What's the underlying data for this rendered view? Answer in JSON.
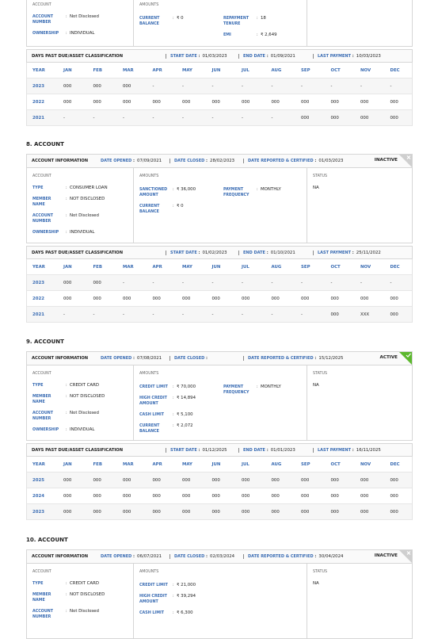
{
  "sections": [
    {
      "account": {
        "heading": "ACCOUNT",
        "fields": [
          {
            "label": "ACCOUNT NUMBER",
            "value": "Not Disclosed"
          },
          {
            "label": "OWNERSHIP",
            "value": "INDIVIDUAL"
          }
        ]
      },
      "amounts": {
        "heading": "AMOUNTS",
        "left": [
          {
            "label": "CURRENT BALANCE",
            "value": "₹ 0"
          }
        ],
        "right": [
          {
            "label": "REPAYMENT TENURE",
            "value": "18"
          },
          {
            "label": "EMI",
            "value": "₹ 2,649"
          }
        ]
      },
      "dpd": {
        "title": "DAYS PAST DUE/ASSET CLASSIFICATION",
        "start_date": {
          "label": "START DATE",
          "value": "01/03/2023"
        },
        "end_date": {
          "label": "END DATE",
          "value": "01/09/2021"
        },
        "last_payment": {
          "label": "LAST PAYMENT",
          "value": "10/03/2023"
        },
        "header": [
          "YEAR",
          "JAN",
          "FEB",
          "MAR",
          "APR",
          "MAY",
          "JUN",
          "JUL",
          "AUG",
          "SEP",
          "OCT",
          "NOV",
          "DEC"
        ],
        "rows": [
          [
            "2023",
            "000",
            "000",
            "000",
            "-",
            "-",
            "-",
            "-",
            "-",
            "-",
            "-",
            "-",
            "-"
          ],
          [
            "2022",
            "000",
            "000",
            "000",
            "000",
            "000",
            "000",
            "000",
            "000",
            "000",
            "000",
            "000",
            "000"
          ],
          [
            "2021",
            "-",
            "-",
            "-",
            "-",
            "-",
            "-",
            "-",
            "-",
            "000",
            "000",
            "000",
            "000"
          ]
        ]
      }
    },
    {
      "title": "8. ACCOUNT",
      "info": {
        "title": "ACCOUNT INFORMATION",
        "date_opened": {
          "label": "DATE OPENED",
          "value": "07/09/2021"
        },
        "date_closed": {
          "label": "DATE CLOSED",
          "value": "28/02/2023"
        },
        "date_reported": {
          "label": "DATE REPORTED & CERTIFIED",
          "value": "01/03/2023"
        },
        "status": "INACTIVE",
        "badge": {
          "color": "#cfcfcf",
          "icon": "cross"
        }
      },
      "account": {
        "heading": "ACCOUNT",
        "fields": [
          {
            "label": "TYPE",
            "value": "CONSUMER LOAN"
          },
          {
            "label": "MEMBER NAME",
            "value": "NOT DISCLOSED"
          },
          {
            "label": "ACCOUNT NUMBER",
            "value": "Not Disclosed"
          },
          {
            "label": "OWNERSHIP",
            "value": "INDIVIDUAL"
          }
        ]
      },
      "amounts": {
        "heading": "AMOUNTS",
        "left": [
          {
            "label": "SANCTIONED AMOUNT",
            "value": "₹ 36,000"
          },
          {
            "label": "CURRENT BALANCE",
            "value": "₹ 0"
          }
        ],
        "right": [
          {
            "label": "PAYMENT FREQUENCY",
            "value": "MONTHLY"
          }
        ]
      },
      "status": {
        "heading": "STATUS",
        "value": "NA"
      },
      "dpd": {
        "title": "DAYS PAST DUE/ASSET CLASSIFICATION",
        "start_date": {
          "label": "START DATE",
          "value": "01/02/2023"
        },
        "end_date": {
          "label": "END DATE",
          "value": "01/10/2021"
        },
        "last_payment": {
          "label": "LAST PAYMENT",
          "value": "25/11/2022"
        },
        "header": [
          "YEAR",
          "JAN",
          "FEB",
          "MAR",
          "APR",
          "MAY",
          "JUN",
          "JUL",
          "AUG",
          "SEP",
          "OCT",
          "NOV",
          "DEC"
        ],
        "rows": [
          [
            "2023",
            "000",
            "000",
            "-",
            "-",
            "-",
            "-",
            "-",
            "-",
            "-",
            "-",
            "-",
            "-"
          ],
          [
            "2022",
            "000",
            "000",
            "000",
            "000",
            "000",
            "000",
            "000",
            "000",
            "000",
            "000",
            "000",
            "000"
          ],
          [
            "2021",
            "-",
            "-",
            "-",
            "-",
            "-",
            "-",
            "-",
            "-",
            "-",
            "000",
            "XXX",
            "000"
          ]
        ]
      }
    },
    {
      "title": "9. ACCOUNT",
      "info": {
        "title": "ACCOUNT INFORMATION",
        "date_opened": {
          "label": "DATE OPENED",
          "value": "07/08/2021"
        },
        "date_closed": {
          "label": "DATE CLOSED"
        },
        "date_reported": {
          "label": "DATE REPORTED & CERTIFIED",
          "value": "15/12/2025"
        },
        "status": "ACTIVE",
        "badge": {
          "color": "#5cb82e",
          "icon": "check"
        }
      },
      "account": {
        "heading": "ACCOUNT",
        "fields": [
          {
            "label": "TYPE",
            "value": "CREDIT CARD"
          },
          {
            "label": "MEMBER NAME",
            "value": "NOT DISCLOSED"
          },
          {
            "label": "ACCOUNT NUMBER",
            "value": "Not Disclosed"
          },
          {
            "label": "OWNERSHIP",
            "value": "INDIVIDUAL"
          }
        ]
      },
      "amounts": {
        "heading": "AMOUNTS",
        "left": [
          {
            "label": "CREDIT LIMIT",
            "value": "₹ 70,000"
          },
          {
            "label": "HIGH CREDIT AMOUNT",
            "value": "₹ 14,894"
          },
          {
            "label": "CASH LIMIT",
            "value": "₹ 5,100"
          },
          {
            "label": "CURRENT BALANCE",
            "value": "₹ 2,072"
          }
        ],
        "right": [
          {
            "label": "PAYMENT FREQUENCY",
            "value": "MONTHLY"
          }
        ]
      },
      "status": {
        "heading": "STATUS",
        "value": "NA"
      },
      "dpd": {
        "title": "DAYS PAST DUE/ASSET CLASSIFICATION",
        "start_date": {
          "label": "START DATE",
          "value": "01/12/2025"
        },
        "end_date": {
          "label": "END DATE",
          "value": "01/01/2023"
        },
        "last_payment": {
          "label": "LAST PAYMENT",
          "value": "16/11/2025"
        },
        "header": [
          "YEAR",
          "JAN",
          "FEB",
          "MAR",
          "APR",
          "MAY",
          "JUN",
          "JUL",
          "AUG",
          "SEP",
          "OCT",
          "NOV",
          "DEC"
        ],
        "rows": [
          [
            "2025",
            "000",
            "000",
            "000",
            "000",
            "000",
            "000",
            "000",
            "000",
            "000",
            "000",
            "000",
            "000"
          ],
          [
            "2024",
            "000",
            "000",
            "000",
            "000",
            "000",
            "000",
            "000",
            "000",
            "000",
            "000",
            "000",
            "000"
          ],
          [
            "2023",
            "000",
            "000",
            "000",
            "000",
            "000",
            "000",
            "000",
            "000",
            "000",
            "000",
            "000",
            "000"
          ]
        ]
      }
    },
    {
      "title": "10. ACCOUNT",
      "info": {
        "title": "ACCOUNT INFORMATION",
        "date_opened": {
          "label": "DATE OPENED",
          "value": "06/07/2021"
        },
        "date_closed": {
          "label": "DATE CLOSED",
          "value": "02/03/2024"
        },
        "date_reported": {
          "label": "DATE REPORTED & CERTIFIED",
          "value": "30/04/2024"
        },
        "status": "INACTIVE",
        "badge": {
          "color": "#cfcfcf",
          "icon": "cross"
        }
      },
      "account": {
        "heading": "ACCOUNT",
        "fields": [
          {
            "label": "TYPE",
            "value": "CREDIT CARD"
          },
          {
            "label": "MEMBER NAME",
            "value": "NOT DISCLOSED"
          },
          {
            "label": "ACCOUNT NUMBER",
            "value": "Not Disclosed"
          }
        ]
      },
      "amounts": {
        "heading": "AMOUNTS",
        "left": [
          {
            "label": "CREDIT LIMIT",
            "value": "₹ 21,000"
          },
          {
            "label": "HIGH CREDIT AMOUNT",
            "value": "₹ 39,294"
          },
          {
            "label": "CASH LIMIT",
            "value": "₹ 6,300"
          }
        ],
        "right": []
      },
      "status": {
        "heading": "STATUS",
        "value": "NA"
      }
    }
  ]
}
